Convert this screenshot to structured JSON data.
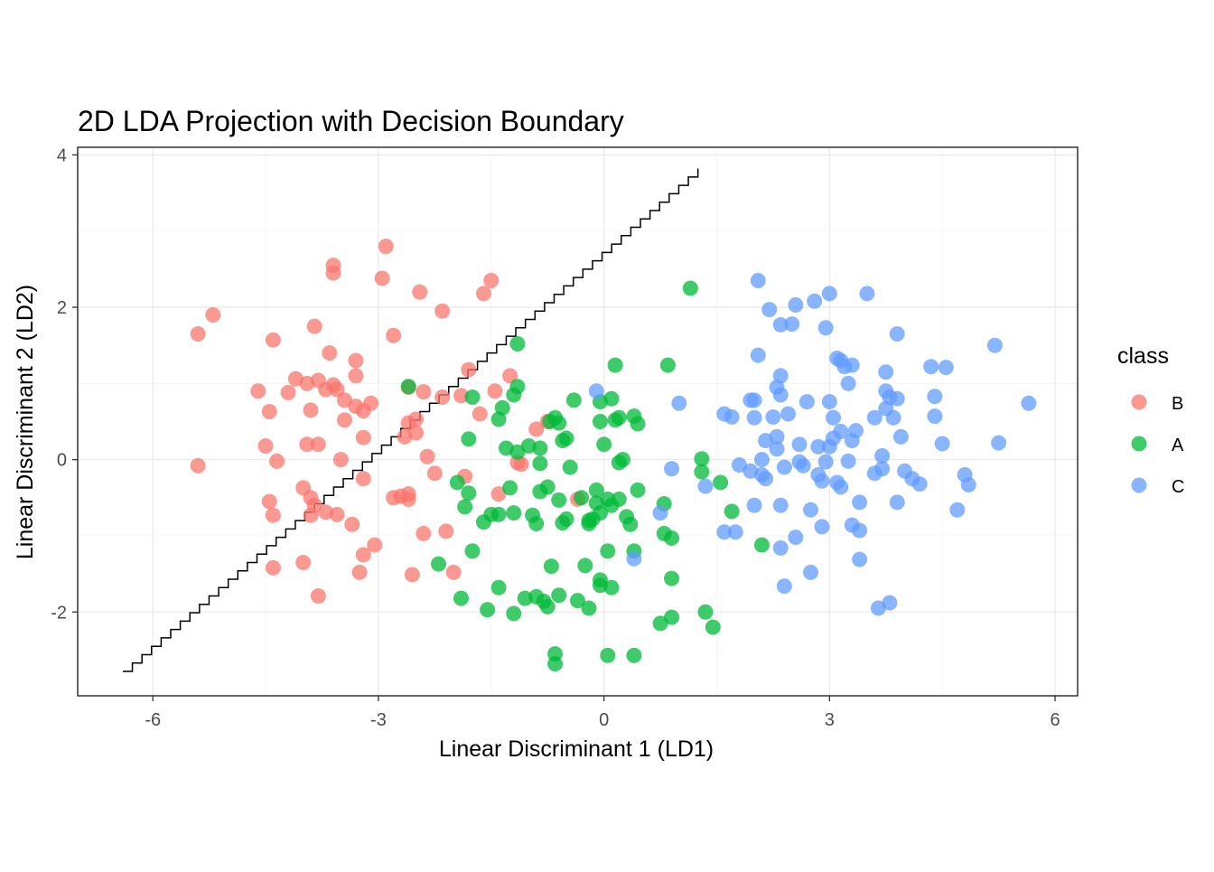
{
  "chart_data": {
    "type": "scatter",
    "title": "2D LDA Projection with Decision Boundary",
    "xlabel": "Linear Discriminant 1 (LD1)",
    "ylabel": "Linear Discriminant 2 (LD2)",
    "xlim": [
      -7.0,
      6.3
    ],
    "ylim": [
      -3.1,
      4.1
    ],
    "x_ticks": [
      -6,
      -3,
      0,
      3,
      6
    ],
    "x_tick_labels": [
      "-6",
      "-3",
      "0",
      "3",
      "6"
    ],
    "y_ticks": [
      -2,
      0,
      2,
      4
    ],
    "y_tick_labels": [
      "-2",
      "0",
      "2",
      "4"
    ],
    "grid": true,
    "legend": {
      "title": "class",
      "position": "right"
    },
    "series": [
      {
        "name": "B",
        "color": "#F8766D",
        "points": [
          [
            -5.4,
            1.65
          ],
          [
            -5.2,
            1.9
          ],
          [
            -5.4,
            -0.08
          ],
          [
            -4.6,
            0.9
          ],
          [
            -4.4,
            1.57
          ],
          [
            -4.2,
            0.88
          ],
          [
            -4.1,
            1.06
          ],
          [
            -4.45,
            0.63
          ],
          [
            -4.45,
            -0.55
          ],
          [
            -4.35,
            -0.02
          ],
          [
            -4.4,
            -0.73
          ],
          [
            -4.5,
            0.18
          ],
          [
            -4.4,
            -1.42
          ],
          [
            -4.0,
            -0.37
          ],
          [
            -3.95,
            0.2
          ],
          [
            -3.95,
            1.0
          ],
          [
            -3.9,
            0.65
          ],
          [
            -3.85,
            1.75
          ],
          [
            -3.8,
            1.04
          ],
          [
            -3.8,
            0.2
          ],
          [
            -3.7,
            0.92
          ],
          [
            -3.65,
            1.4
          ],
          [
            -3.6,
            2.55
          ],
          [
            -3.6,
            2.45
          ],
          [
            -3.9,
            -0.5
          ],
          [
            -3.85,
            -0.6
          ],
          [
            -3.9,
            -0.73
          ],
          [
            -3.6,
            0.98
          ],
          [
            -3.55,
            0.92
          ],
          [
            -3.45,
            0.78
          ],
          [
            -3.45,
            0.52
          ],
          [
            -3.3,
            1.3
          ],
          [
            -3.3,
            1.1
          ],
          [
            -3.3,
            0.7
          ],
          [
            -3.2,
            0.64
          ],
          [
            -3.2,
            0.29
          ],
          [
            -3.5,
            0.0
          ],
          [
            -3.55,
            -0.72
          ],
          [
            -3.35,
            -0.85
          ],
          [
            -3.2,
            -0.25
          ],
          [
            -3.1,
            0.74
          ],
          [
            -2.95,
            2.38
          ],
          [
            -2.9,
            2.8
          ],
          [
            -3.7,
            -0.69
          ],
          [
            -3.8,
            -1.79
          ],
          [
            -4.0,
            -1.35
          ],
          [
            -3.2,
            -1.25
          ],
          [
            -3.05,
            -1.12
          ],
          [
            -3.25,
            -1.48
          ],
          [
            -2.8,
            1.63
          ],
          [
            -2.6,
            -0.52
          ],
          [
            -2.6,
            0.95
          ],
          [
            -2.65,
            0.3
          ],
          [
            -2.6,
            0.48
          ],
          [
            -2.5,
            0.35
          ],
          [
            -2.5,
            0.53
          ],
          [
            -2.45,
            2.2
          ],
          [
            -2.4,
            0.89
          ],
          [
            -2.7,
            -0.48
          ],
          [
            -2.8,
            -0.5
          ],
          [
            -2.6,
            -0.45
          ],
          [
            -2.55,
            -1.51
          ],
          [
            -2.4,
            -0.97
          ],
          [
            -2.35,
            0.04
          ],
          [
            -2.25,
            -0.18
          ],
          [
            -2.15,
            0.82
          ],
          [
            -2.1,
            -0.94
          ],
          [
            -2.15,
            1.95
          ],
          [
            -2.0,
            -1.48
          ],
          [
            -1.9,
            0.84
          ],
          [
            -1.85,
            -0.22
          ],
          [
            -1.8,
            1.18
          ],
          [
            -1.65,
            0.6
          ],
          [
            -1.6,
            2.18
          ],
          [
            -1.5,
            2.35
          ],
          [
            -1.45,
            0.9
          ],
          [
            -1.4,
            -0.45
          ],
          [
            -1.25,
            1.1
          ],
          [
            -1.15,
            -0.04
          ],
          [
            -1.1,
            -0.06
          ],
          [
            -0.9,
            0.4
          ],
          [
            -0.75,
            0.5
          ],
          [
            -0.35,
            -0.52
          ]
        ]
      },
      {
        "name": "A",
        "color": "#00BA38",
        "points": [
          [
            -2.6,
            0.96
          ],
          [
            -2.2,
            -1.37
          ],
          [
            -1.95,
            -0.3
          ],
          [
            -1.9,
            -1.82
          ],
          [
            -1.85,
            -0.62
          ],
          [
            -1.8,
            0.27
          ],
          [
            -1.8,
            -0.44
          ],
          [
            -1.75,
            -1.2
          ],
          [
            -1.75,
            0.82
          ],
          [
            -1.6,
            -0.82
          ],
          [
            -1.55,
            -1.97
          ],
          [
            -1.5,
            -0.72
          ],
          [
            -1.4,
            -0.72
          ],
          [
            -1.4,
            -1.68
          ],
          [
            -1.4,
            0.53
          ],
          [
            -1.35,
            0.68
          ],
          [
            -1.3,
            0.15
          ],
          [
            -1.25,
            -0.37
          ],
          [
            -1.2,
            0.85
          ],
          [
            -1.2,
            -0.7
          ],
          [
            -1.2,
            -2.02
          ],
          [
            -1.15,
            0.96
          ],
          [
            -1.15,
            1.52
          ],
          [
            -1.15,
            0.1
          ],
          [
            -1.05,
            -1.82
          ],
          [
            -1.0,
            0.18
          ],
          [
            -0.95,
            -0.73
          ],
          [
            -0.9,
            -1.8
          ],
          [
            -0.9,
            -0.84
          ],
          [
            -0.85,
            -0.42
          ],
          [
            -0.85,
            0.15
          ],
          [
            -0.85,
            -0.05
          ],
          [
            -0.8,
            -1.86
          ],
          [
            -0.75,
            -1.93
          ],
          [
            -0.75,
            -0.36
          ],
          [
            -0.72,
            0.5
          ],
          [
            -0.7,
            -1.4
          ],
          [
            -0.65,
            0.55
          ],
          [
            -0.65,
            -2.55
          ],
          [
            -0.65,
            -2.68
          ],
          [
            -0.6,
            -1.78
          ],
          [
            -0.6,
            0.48
          ],
          [
            -0.6,
            -0.53
          ],
          [
            -0.55,
            -0.83
          ],
          [
            -0.55,
            0.25
          ],
          [
            -0.5,
            0.28
          ],
          [
            -0.5,
            -0.78
          ],
          [
            -0.45,
            -0.1
          ],
          [
            -0.4,
            0.78
          ],
          [
            -0.35,
            -1.85
          ],
          [
            -0.3,
            -0.5
          ],
          [
            -0.25,
            -1.39
          ],
          [
            -0.2,
            -1.95
          ],
          [
            -0.2,
            -0.84
          ],
          [
            -0.2,
            -0.8
          ],
          [
            -0.15,
            -0.78
          ],
          [
            -0.1,
            -0.4
          ],
          [
            -0.1,
            -0.57
          ],
          [
            -0.05,
            0.5
          ],
          [
            -0.05,
            -0.7
          ],
          [
            -0.05,
            -1.65
          ],
          [
            -0.05,
            -1.58
          ],
          [
            -0.05,
            0.76
          ],
          [
            0.0,
            0.2
          ],
          [
            0.05,
            -1.2
          ],
          [
            0.05,
            -2.57
          ],
          [
            0.05,
            -0.52
          ],
          [
            0.1,
            -0.6
          ],
          [
            0.1,
            -1.68
          ],
          [
            0.1,
            0.8
          ],
          [
            0.15,
            1.24
          ],
          [
            0.15,
            0.52
          ],
          [
            0.2,
            -0.52
          ],
          [
            0.2,
            0.55
          ],
          [
            0.2,
            -0.04
          ],
          [
            0.25,
            0.0
          ],
          [
            0.3,
            -0.75
          ],
          [
            0.35,
            -0.85
          ],
          [
            0.4,
            0.57
          ],
          [
            0.4,
            -1.2
          ],
          [
            0.45,
            -0.4
          ],
          [
            0.4,
            -2.57
          ],
          [
            0.45,
            0.47
          ],
          [
            0.75,
            -2.15
          ],
          [
            0.8,
            -0.58
          ],
          [
            0.8,
            -0.97
          ],
          [
            0.85,
            1.24
          ],
          [
            0.9,
            -2.07
          ],
          [
            0.9,
            -1.56
          ],
          [
            0.9,
            -1.03
          ],
          [
            1.15,
            2.25
          ],
          [
            1.3,
            0.01
          ],
          [
            1.3,
            -0.16
          ],
          [
            1.35,
            -2.0
          ],
          [
            1.45,
            -2.2
          ],
          [
            1.55,
            -0.3
          ],
          [
            1.7,
            -0.68
          ],
          [
            2.1,
            -1.12
          ]
        ]
      },
      {
        "name": "C",
        "color": "#619CFF",
        "points": [
          [
            -0.1,
            0.9
          ],
          [
            0.4,
            -1.3
          ],
          [
            0.75,
            -0.7
          ],
          [
            0.9,
            -0.12
          ],
          [
            1.0,
            0.74
          ],
          [
            1.35,
            -0.35
          ],
          [
            1.6,
            0.6
          ],
          [
            1.7,
            0.56
          ],
          [
            1.6,
            -0.95
          ],
          [
            1.75,
            -0.95
          ],
          [
            1.8,
            -0.07
          ],
          [
            1.95,
            0.78
          ],
          [
            1.95,
            -0.15
          ],
          [
            2.0,
            0.55
          ],
          [
            2.0,
            -0.6
          ],
          [
            2.05,
            2.35
          ],
          [
            2.05,
            1.37
          ],
          [
            2.1,
            -0.2
          ],
          [
            2.1,
            0.0
          ],
          [
            2.15,
            0.25
          ],
          [
            2.15,
            -0.25
          ],
          [
            2.2,
            1.97
          ],
          [
            2.25,
            0.56
          ],
          [
            2.3,
            0.95
          ],
          [
            2.3,
            0.3
          ],
          [
            2.3,
            0.14
          ],
          [
            2.35,
            1.1
          ],
          [
            2.35,
            0.85
          ],
          [
            2.35,
            1.77
          ],
          [
            2.35,
            -0.6
          ],
          [
            2.35,
            -1.16
          ],
          [
            2.4,
            -0.1
          ],
          [
            2.4,
            -1.66
          ],
          [
            2.45,
            0.6
          ],
          [
            2.5,
            1.78
          ],
          [
            2.55,
            2.03
          ],
          [
            2.55,
            -1.02
          ],
          [
            2.6,
            -0.03
          ],
          [
            2.65,
            -0.08
          ],
          [
            2.7,
            0.76
          ],
          [
            2.75,
            -0.66
          ],
          [
            2.75,
            -1.48
          ],
          [
            2.8,
            2.08
          ],
          [
            2.85,
            0.17
          ],
          [
            2.9,
            -0.88
          ],
          [
            2.9,
            -0.28
          ],
          [
            2.95,
            1.73
          ],
          [
            2.95,
            -0.03
          ],
          [
            3.0,
            0.76
          ],
          [
            3.0,
            0.17
          ],
          [
            3.0,
            2.18
          ],
          [
            3.05,
            0.55
          ],
          [
            3.1,
            1.33
          ],
          [
            3.1,
            -0.3
          ],
          [
            3.15,
            0.37
          ],
          [
            3.15,
            1.3
          ],
          [
            3.2,
            1.22
          ],
          [
            3.25,
            1.0
          ],
          [
            3.25,
            -0.02
          ],
          [
            3.3,
            1.24
          ],
          [
            3.3,
            -0.86
          ],
          [
            3.3,
            0.25
          ],
          [
            3.35,
            0.38
          ],
          [
            3.4,
            -0.56
          ],
          [
            3.4,
            -0.93
          ],
          [
            3.4,
            -1.31
          ],
          [
            3.5,
            2.18
          ],
          [
            3.6,
            -0.18
          ],
          [
            3.65,
            -1.95
          ],
          [
            3.7,
            0.05
          ],
          [
            3.7,
            -0.12
          ],
          [
            3.75,
            1.15
          ],
          [
            3.75,
            0.9
          ],
          [
            3.75,
            0.67
          ],
          [
            3.8,
            0.82
          ],
          [
            3.8,
            -1.88
          ],
          [
            3.85,
            0.55
          ],
          [
            3.9,
            1.65
          ],
          [
            3.9,
            0.8
          ],
          [
            3.9,
            -0.56
          ],
          [
            3.95,
            0.3
          ],
          [
            4.0,
            -0.15
          ],
          [
            4.1,
            -0.25
          ],
          [
            4.2,
            -0.32
          ],
          [
            4.35,
            1.22
          ],
          [
            4.4,
            0.83
          ],
          [
            4.4,
            0.57
          ],
          [
            4.5,
            0.21
          ],
          [
            4.55,
            1.21
          ],
          [
            4.7,
            -0.66
          ],
          [
            4.8,
            -0.2
          ],
          [
            4.85,
            -0.33
          ],
          [
            5.2,
            1.5
          ],
          [
            5.25,
            0.22
          ],
          [
            5.65,
            0.74
          ],
          [
            2.0,
            0.78
          ],
          [
            2.6,
            0.2
          ],
          [
            3.6,
            0.55
          ],
          [
            3.05,
            0.28
          ],
          [
            2.85,
            -0.2
          ],
          [
            3.15,
            -0.36
          ]
        ]
      }
    ],
    "boundary_line": [
      [
        -6.4,
        -2.78
      ],
      [
        1.25,
        3.82
      ]
    ]
  }
}
